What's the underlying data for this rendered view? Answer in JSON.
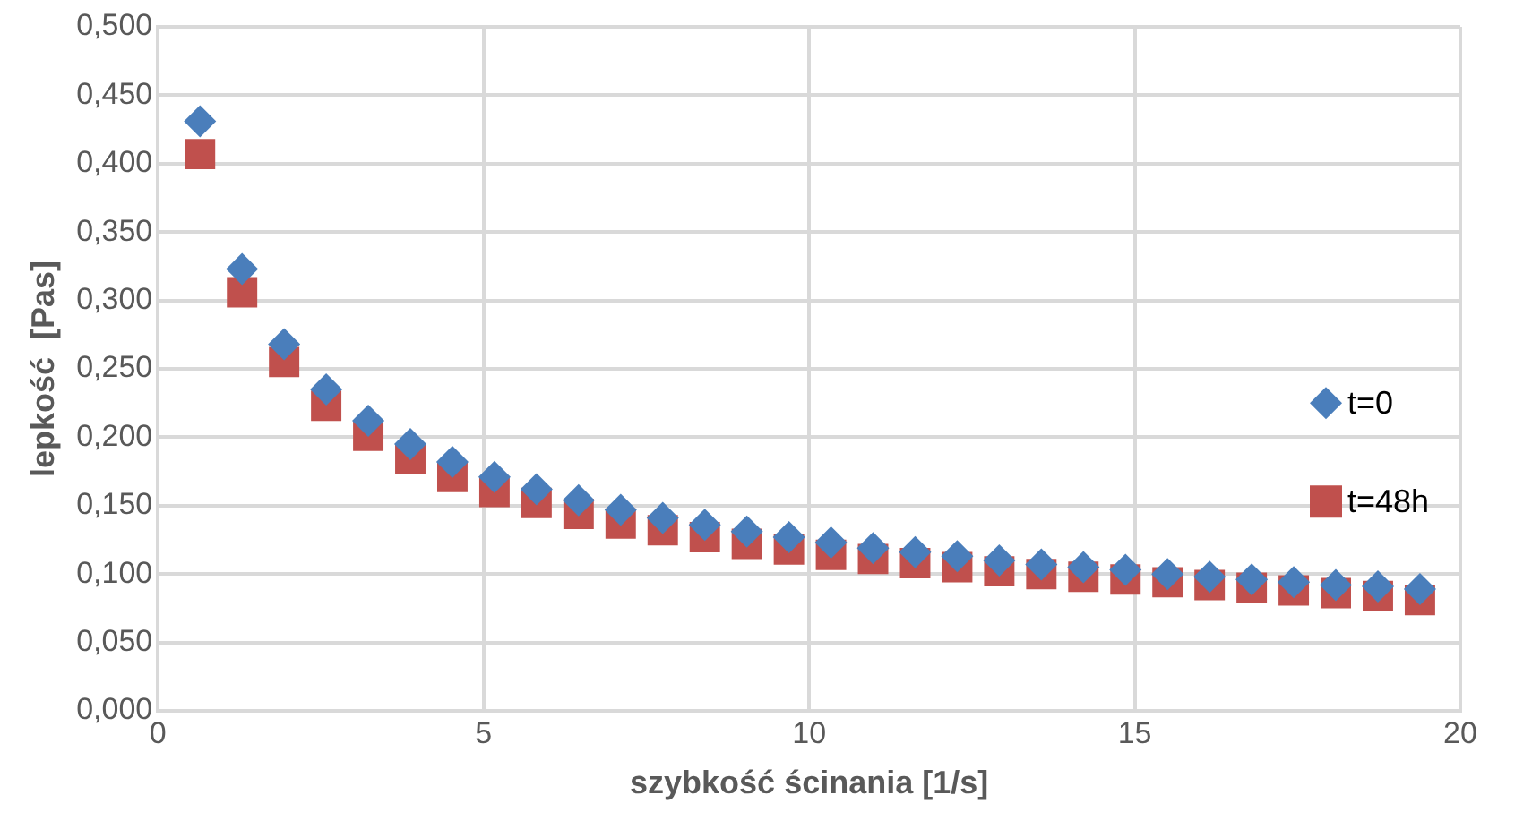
{
  "chart_data": {
    "type": "scatter",
    "xlabel": "szybkość ścinania [1/s]",
    "ylabel": "lepkość  [Pas]",
    "x": [
      0.646,
      1.292,
      1.938,
      2.584,
      3.23,
      3.876,
      4.522,
      5.168,
      5.814,
      6.46,
      7.106,
      7.752,
      8.398,
      9.044,
      9.69,
      10.336,
      10.982,
      11.628,
      12.274,
      12.92,
      13.566,
      14.212,
      14.858,
      15.504,
      16.15,
      16.796,
      17.442,
      18.088,
      18.734,
      19.38
    ],
    "series": [
      {
        "name": "t=0",
        "color": "#4a7ebb",
        "marker": "diamond",
        "values": [
          0.431,
          0.323,
          0.268,
          0.235,
          0.212,
          0.195,
          0.182,
          0.171,
          0.162,
          0.154,
          0.147,
          0.141,
          0.136,
          0.131,
          0.127,
          0.123,
          0.119,
          0.116,
          0.113,
          0.11,
          0.107,
          0.105,
          0.103,
          0.1,
          0.098,
          0.096,
          0.094,
          0.092,
          0.091,
          0.089
        ]
      },
      {
        "name": "t=48h",
        "color": "#c0504d",
        "marker": "square",
        "values": [
          0.407,
          0.306,
          0.255,
          0.223,
          0.201,
          0.184,
          0.171,
          0.16,
          0.152,
          0.144,
          0.137,
          0.132,
          0.127,
          0.122,
          0.118,
          0.114,
          0.111,
          0.108,
          0.105,
          0.102,
          0.1,
          0.098,
          0.096,
          0.094,
          0.092,
          0.09,
          0.088,
          0.086,
          0.084,
          0.081
        ]
      }
    ],
    "xlim": [
      0,
      20
    ],
    "xticks": [
      0,
      5,
      10,
      15,
      20
    ],
    "ylim": [
      0,
      0.5
    ],
    "yticks": [
      {
        "value": 0,
        "label": "0,000"
      },
      {
        "value": 0.05,
        "label": "0,050"
      },
      {
        "value": 0.1,
        "label": "0,100"
      },
      {
        "value": 0.15,
        "label": "0,150"
      },
      {
        "value": 0.2,
        "label": "0,200"
      },
      {
        "value": 0.25,
        "label": "0,250"
      },
      {
        "value": 0.3,
        "label": "0,300"
      },
      {
        "value": 0.35,
        "label": "0,350"
      },
      {
        "value": 0.4,
        "label": "0,400"
      },
      {
        "value": 0.45,
        "label": "0,450"
      },
      {
        "value": 0.5,
        "label": "0,500"
      }
    ],
    "grid": true,
    "legend": "right"
  }
}
